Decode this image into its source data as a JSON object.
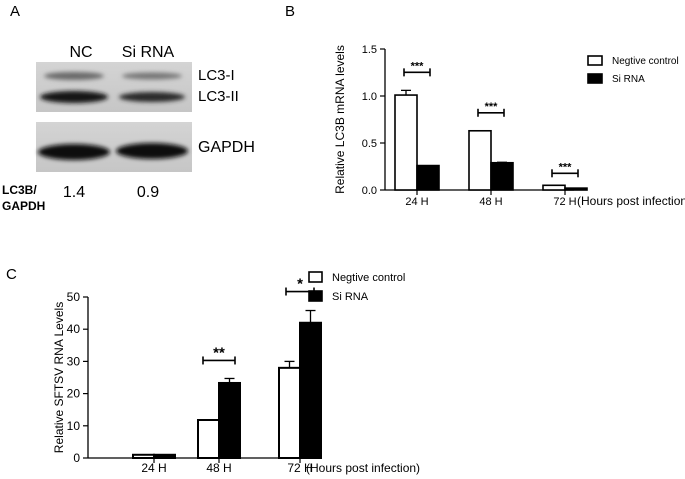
{
  "panel_a": {
    "letter": "A",
    "col_nc": "NC",
    "col_si": "Si RNA",
    "band_lc3i": "LC3-I",
    "band_lc3ii": "LC3-II",
    "band_gapdh": "GAPDH",
    "ratio_label_1": "LC3B/",
    "ratio_label_2": "GAPDH",
    "ratio_nc": "1.4",
    "ratio_si": "0.9"
  },
  "chart_data": [
    {
      "type": "bar",
      "panel": "B",
      "ylabel": "Relative LC3B mRNA levels",
      "xlabel": "(Hours post infection)",
      "categories": [
        "24 H",
        "48 H",
        "72 H"
      ],
      "ylim": [
        0,
        1.5
      ],
      "yticks": [
        "0.0",
        "0.5",
        "1.0",
        "1.5"
      ],
      "yticks_values": [
        0,
        0.5,
        1.0,
        1.5
      ],
      "series": [
        {
          "name": "Negtive control",
          "values": [
            1.01,
            0.63,
            0.05
          ],
          "errors": [
            0.05,
            0,
            0
          ],
          "fill": "#ffffff"
        },
        {
          "name": "Si RNA",
          "values": [
            0.26,
            0.29,
            0.02
          ],
          "errors": [
            0,
            0.005,
            0
          ],
          "fill": "#000000"
        }
      ],
      "annotations": [
        "***",
        "***",
        "***"
      ]
    },
    {
      "type": "bar",
      "panel": "C",
      "ylabel": "Relative SFTSV RNA Levels",
      "xlabel": "(Hours post infection)",
      "categories": [
        "24 H",
        "48 H",
        "72 H"
      ],
      "ylim": [
        0,
        50
      ],
      "yticks": [
        "0",
        "10",
        "20",
        "30",
        "40",
        "50"
      ],
      "yticks_values": [
        0,
        10,
        20,
        30,
        40,
        50
      ],
      "series": [
        {
          "name": "Negtive control",
          "values": [
            1.0,
            11.8,
            28.0
          ],
          "errors": [
            0,
            0,
            2.0
          ],
          "fill": "#ffffff"
        },
        {
          "name": "Si RNA",
          "values": [
            1.0,
            23.3,
            42.0
          ],
          "errors": [
            0,
            1.4,
            3.8
          ],
          "fill": "#000000"
        }
      ],
      "annotations": [
        "",
        "**",
        "*"
      ]
    }
  ]
}
